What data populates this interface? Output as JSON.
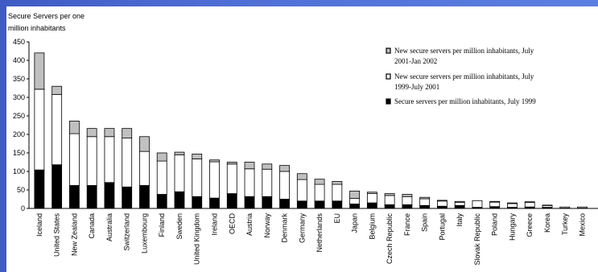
{
  "chart_data": {
    "type": "bar",
    "stacked": true,
    "ylabel_lines": [
      "Secure Servers per one",
      "million inhabitants"
    ],
    "ylim": [
      0,
      450
    ],
    "yticks": [
      0,
      50,
      100,
      150,
      200,
      250,
      300,
      350,
      400,
      450
    ],
    "categories": [
      "Iceland",
      "United States",
      "New Zealand",
      "Canada",
      "Australia",
      "Switzerland",
      "Luxembourg",
      "Finland",
      "Sweden",
      "United Kingdom",
      "Ireland",
      "OECD",
      "Austria",
      "Norway",
      "Denmark",
      "Germany",
      "Netherlands",
      "EU",
      "Japan",
      "Belgium",
      "Czech Republic",
      "France",
      "Spain",
      "Portugal",
      "Italy",
      "Slovak Republic",
      "Poland",
      "Hungary",
      "Greece",
      "Korea",
      "Turkey",
      "Mexico"
    ],
    "series": [
      {
        "name": "Secure servers per million inhabitants, July 1999",
        "color": "#000000",
        "values": [
          104,
          118,
          62,
          62,
          70,
          58,
          62,
          38,
          45,
          32,
          28,
          40,
          32,
          32,
          25,
          20,
          20,
          20,
          12,
          15,
          10,
          10,
          8,
          6,
          8,
          3,
          5,
          3,
          4,
          3,
          1,
          1
        ]
      },
      {
        "name": "New secure servers per million inhabitants, July 1999-July 2001",
        "color": "#ffffff",
        "values": [
          218,
          190,
          140,
          132,
          124,
          132,
          92,
          90,
          100,
          102,
          98,
          80,
          75,
          74,
          75,
          58,
          45,
          45,
          15,
          25,
          25,
          22,
          18,
          14,
          8,
          18,
          12,
          10,
          12,
          5,
          3,
          3
        ]
      },
      {
        "name": "New secure servers per million inhabitants, July 2001-Jan 2002",
        "color": "#c0c0c0",
        "values": [
          98,
          22,
          34,
          22,
          22,
          26,
          40,
          22,
          7,
          13,
          5,
          5,
          18,
          14,
          16,
          16,
          14,
          8,
          20,
          4,
          5,
          6,
          4,
          2,
          3,
          0,
          2,
          2,
          2,
          1,
          0,
          0
        ]
      }
    ],
    "legend_position": "top-right",
    "legend_order": [
      2,
      1,
      0
    ],
    "grid": false
  }
}
